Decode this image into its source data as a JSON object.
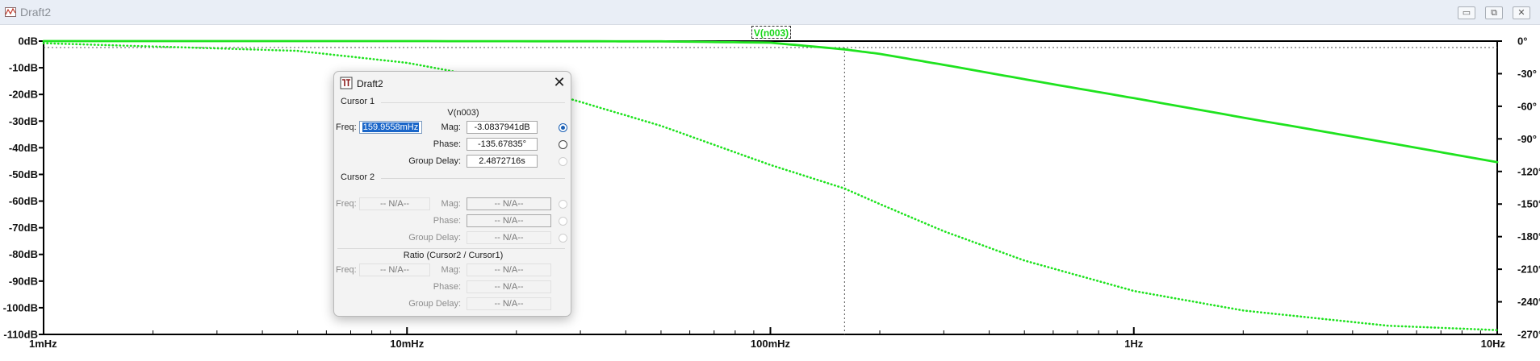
{
  "window": {
    "title": "Draft2",
    "buttons": {
      "minimize": "▭",
      "restore": "⧉",
      "close": "✕"
    }
  },
  "plot": {
    "trace_label": "V(n003)",
    "colors": {
      "trace": "#1fe31f",
      "axis": "#000000",
      "cursor": "#000000",
      "background": "#ffffff"
    },
    "y_left_ticks": [
      "0dB",
      "-10dB",
      "-20dB",
      "-30dB",
      "-40dB",
      "-50dB",
      "-60dB",
      "-70dB",
      "-80dB",
      "-90dB",
      "-100dB",
      "-110dB"
    ],
    "y_right_ticks": [
      "0°",
      "-30°",
      "-60°",
      "-90°",
      "-120°",
      "-150°",
      "-180°",
      "-210°",
      "-240°",
      "-270°"
    ],
    "x_ticks": [
      "1mHz",
      "10mHz",
      "100mHz",
      "1Hz",
      "10Hz"
    ],
    "cursor_freq_hz": 0.1599558
  },
  "chart_data": {
    "type": "line",
    "x_scale": "log",
    "x_range_hz": [
      0.001,
      10
    ],
    "y_left_range_db": [
      -110,
      0
    ],
    "y_right_range_deg": [
      -270,
      0
    ],
    "grid": false,
    "series": [
      {
        "name": "V(n003)",
        "style": "solid",
        "axis": "left",
        "x": [
          0.001,
          0.01,
          0.05,
          0.1,
          0.16,
          0.2,
          0.3,
          0.5,
          1,
          2,
          5,
          10
        ],
        "y": [
          0,
          0,
          -0.1,
          -0.6,
          -3.1,
          -4.8,
          -8.9,
          -14.3,
          -21.4,
          -28.7,
          -38.1,
          -45.4
        ]
      },
      {
        "name": "V(n003)",
        "style": "dotted",
        "axis": "right",
        "x": [
          0.001,
          0.005,
          0.01,
          0.02,
          0.05,
          0.1,
          0.16,
          0.2,
          0.3,
          0.5,
          1,
          2,
          5,
          10
        ],
        "y": [
          -1.9,
          -9,
          -20,
          -38.5,
          -78,
          -114,
          -135.7,
          -150,
          -175,
          -202,
          -230,
          -248,
          -262,
          -266
        ]
      }
    ]
  },
  "dialog": {
    "title": "Draft2",
    "close": "✕",
    "cursor1": {
      "label": "Cursor 1",
      "trace": "V(n003)",
      "freq_label": "Freq:",
      "freq": "159.9558mHz",
      "mag_label": "Mag:",
      "mag": "-3.0837941dB",
      "phase_label": "Phase:",
      "phase": "-135.67835°",
      "group_delay_label": "Group Delay:",
      "group_delay": "2.4872716s"
    },
    "cursor2": {
      "label": "Cursor 2",
      "freq_label": "Freq:",
      "freq": "-- N/A--",
      "mag_label": "Mag:",
      "mag": "-- N/A--",
      "phase_label": "Phase:",
      "phase": "-- N/A--",
      "group_delay_label": "Group Delay:",
      "group_delay": "-- N/A--"
    },
    "ratio": {
      "label": "Ratio (Cursor2 / Cursor1)",
      "freq_label": "Freq:",
      "freq": "-- N/A--",
      "mag_label": "Mag:",
      "mag": "-- N/A--",
      "phase_label": "Phase:",
      "phase": "-- N/A--",
      "group_delay_label": "Group Delay:",
      "group_delay": "-- N/A--"
    }
  }
}
